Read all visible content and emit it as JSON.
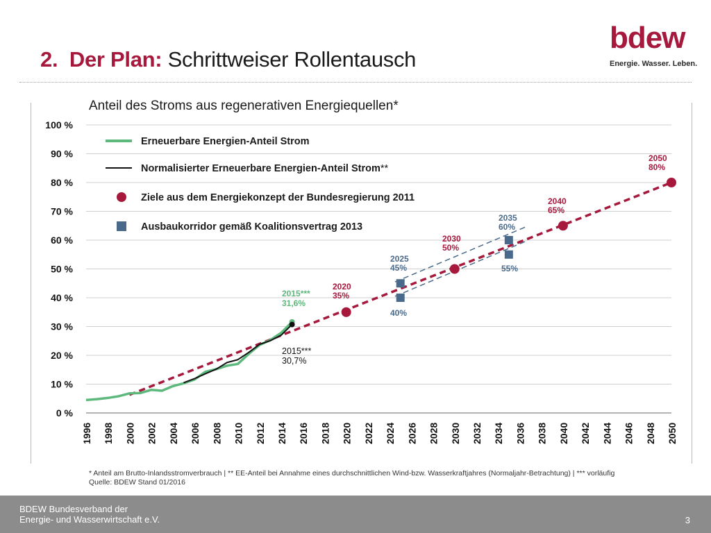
{
  "header": {
    "number": "2.",
    "title_bold": "Der Plan:",
    "title_rest": "Schrittweiser Rollentausch"
  },
  "logo": {
    "word": "bdew",
    "claim": "Energie. Wasser. Leben."
  },
  "colors": {
    "brand": "#a6193d",
    "green": "#5db87c",
    "navy": "#4a6a8c",
    "black": "#111111",
    "footer": "#8c8c8c"
  },
  "chart_data": {
    "type": "line",
    "title": "Anteil des Stroms aus regenerativen Energiequellen*",
    "ylim": [
      0,
      100
    ],
    "xlim": [
      1996,
      2050
    ],
    "yticks": [
      "0 %",
      "10 %",
      "20 %",
      "30 %",
      "40 %",
      "50 %",
      "60 %",
      "70 %",
      "80 %",
      "90 %",
      "100 %"
    ],
    "xticks": [
      "1996",
      "1998",
      "2000",
      "2002",
      "2004",
      "2006",
      "2008",
      "2010",
      "2012",
      "2014",
      "2016",
      "2018",
      "2020",
      "2022",
      "2024",
      "2026",
      "2028",
      "2030",
      "2032",
      "2034",
      "2036",
      "2038",
      "2040",
      "2042",
      "2044",
      "2046",
      "2048",
      "2050"
    ],
    "grid": "horizontal",
    "legend": [
      {
        "key": "green",
        "label": "Erneuerbare Energien-Anteil Strom",
        "suffix": ""
      },
      {
        "key": "black",
        "label": "Normalisierter Erneuerbare Energien-Anteil Strom",
        "suffix": "**"
      },
      {
        "key": "target",
        "label": "Ziele aus dem Energiekonzept der Bundesregierung 2011",
        "suffix": ""
      },
      {
        "key": "corridor",
        "label": "Ausbaukorridor gemäß Koalitionsvertrag 2013",
        "suffix": ""
      }
    ],
    "series": [
      {
        "name": "Erneuerbare Energien-Anteil Strom",
        "x": [
          1996,
          1997,
          1998,
          1999,
          2000,
          2001,
          2002,
          2003,
          2004,
          2005,
          2006,
          2007,
          2008,
          2009,
          2010,
          2011,
          2012,
          2013,
          2014,
          2015
        ],
        "values": [
          4.5,
          4.8,
          5.2,
          5.8,
          6.8,
          6.9,
          8.0,
          7.7,
          9.3,
          10.3,
          11.6,
          14.3,
          15.2,
          16.4,
          17.0,
          20.5,
          23.6,
          25.3,
          27.8,
          31.6
        ]
      },
      {
        "name": "Normalisierter Erneuerbare Energien-Anteil Strom",
        "x": [
          2005,
          2006,
          2007,
          2008,
          2009,
          2010,
          2011,
          2012,
          2013,
          2014,
          2015
        ],
        "values": [
          10.5,
          11.9,
          13.6,
          15.2,
          17.5,
          18.5,
          21.0,
          23.8,
          25.1,
          27.0,
          30.7
        ]
      }
    ],
    "target_line": {
      "x": [
        2000,
        2050
      ],
      "values": [
        6.3,
        80
      ]
    },
    "targets": [
      {
        "year": 2020,
        "value": 35,
        "year_label": "2020",
        "value_label": "35%"
      },
      {
        "year": 2030,
        "value": 50,
        "year_label": "2030",
        "value_label": "50%"
      },
      {
        "year": 2040,
        "value": 65,
        "year_label": "2040",
        "value_label": "65%"
      },
      {
        "year": 2050,
        "value": 80,
        "year_label": "2050",
        "value_label": "80%"
      }
    ],
    "corridor": {
      "upper": {
        "x": [
          2025,
          2035
        ],
        "values": [
          45,
          60
        ]
      },
      "lower": {
        "x": [
          2025,
          2035
        ],
        "values": [
          40,
          55
        ]
      },
      "lines": [
        {
          "x": [
            2024.5,
            2036.5
          ],
          "values": [
            45.5,
            64.5
          ]
        },
        {
          "x": [
            2024.5,
            2036.5
          ],
          "values": [
            40.5,
            59.5
          ]
        }
      ]
    },
    "annotations": {
      "green_end": {
        "year": "2015***",
        "value": "31,6%"
      },
      "black_end": {
        "year": "2015***",
        "value": "30,7%"
      },
      "corridor_2025": {
        "year": "2025",
        "upper": "45%",
        "lower": "40%"
      },
      "corridor_2035": {
        "year": "2035",
        "upper": "60%",
        "lower": "55%"
      }
    }
  },
  "footnote": {
    "line1": "* Anteil am Brutto-Inlandsstromverbrauch  |  ** EE-Anteil bei Annahme eines durchschnittlichen Wind-bzw. Wasserkraftjahres (Normaljahr-Betrachtung)  |  *** vorläufig",
    "line2": "Quelle: BDEW Stand 01/2016"
  },
  "footer": {
    "org_line1": "BDEW Bundesverband der",
    "org_line2": "Energie- und Wasserwirtschaft e.V.",
    "page": "3"
  }
}
